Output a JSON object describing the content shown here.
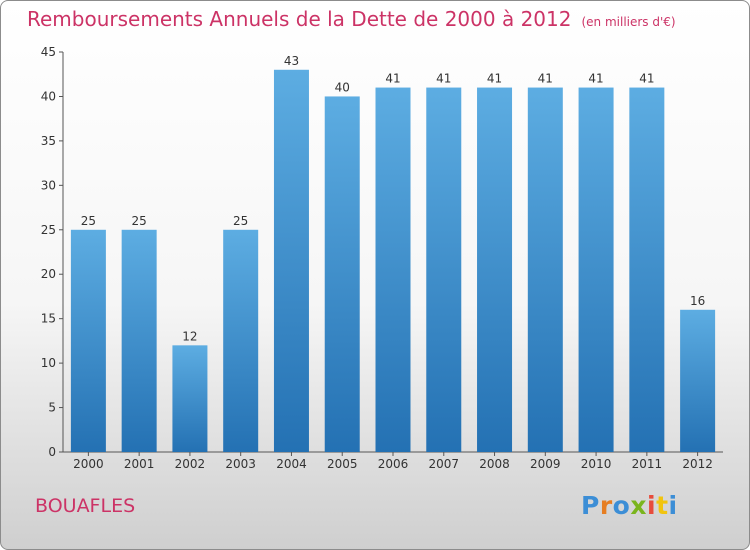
{
  "title": "Remboursements Annuels de la Dette de 2000 à 2012",
  "unit": "(en milliers d'€)",
  "city": "BOUAFLES",
  "logo": {
    "text": "Proxiti",
    "colors": [
      "#3c8ed6",
      "#e67e22",
      "#3c8ed6",
      "#7ab51d",
      "#e74c3c",
      "#f1c40f",
      "#3c8ed6"
    ]
  },
  "colors": {
    "title": "#cc3366",
    "bar_top": "#5dade2",
    "bar_bottom": "#2471b3",
    "axis": "#555555"
  },
  "chart_data": {
    "type": "bar",
    "categories": [
      "2000",
      "2001",
      "2002",
      "2003",
      "2004",
      "2005",
      "2006",
      "2007",
      "2008",
      "2009",
      "2010",
      "2011",
      "2012"
    ],
    "values": [
      25,
      25,
      12,
      25,
      43,
      40,
      41,
      41,
      41,
      41,
      41,
      41,
      16
    ],
    "ylim": [
      0,
      45
    ],
    "yticks": [
      0,
      5,
      10,
      15,
      20,
      25,
      30,
      35,
      40,
      45
    ],
    "grid": false
  }
}
